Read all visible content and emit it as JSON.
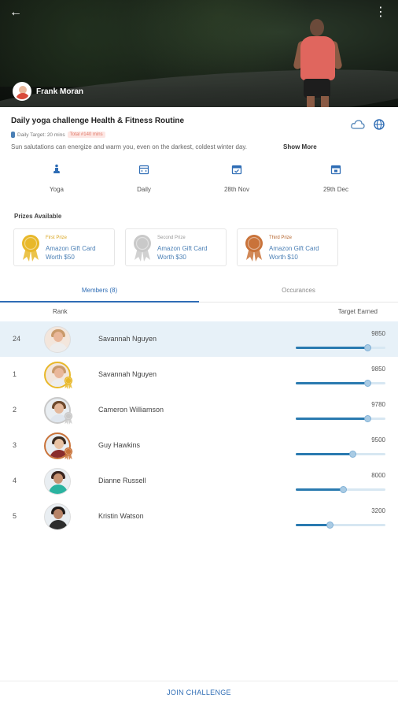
{
  "host": {
    "name": "Frank Moran"
  },
  "challenge": {
    "title": "Daily yoga challenge Health & Fitness  Routine",
    "daily_target": "Daily Target: 20 mins",
    "total_badge": "Total #140 mins",
    "description": "Sun salutations can energize and warm you, even on the darkest, coldest winter day.",
    "show_more": "Show More"
  },
  "info": [
    {
      "icon": "yoga-icon",
      "label": "Yoga"
    },
    {
      "icon": "calendar-icon",
      "label": "Daily"
    },
    {
      "icon": "calendar-check-icon",
      "label": "28th Nov"
    },
    {
      "icon": "calendar-end-icon",
      "label": "29th Dec"
    }
  ],
  "prizes": {
    "label": "Prizes Available",
    "items": [
      {
        "place": "First Prize",
        "line1": "Amazon Gift Card",
        "line2": "Worth $50",
        "place_color": "#d9a520",
        "medal_color": "#e8b82a"
      },
      {
        "place": "Second Prize",
        "line1": "Amazon Gift Card",
        "line2": "Worth $30",
        "place_color": "#999999",
        "medal_color": "#c9c9c9"
      },
      {
        "place": "Third Prize",
        "line1": "Amazon Gift Card",
        "line2": "Worth $10",
        "place_color": "#b5642c",
        "medal_color": "#c9733a"
      }
    ]
  },
  "tabs": {
    "members": "Members (8)",
    "occurances": "Occurances"
  },
  "columns": {
    "rank": "Rank",
    "target": "Target Earned"
  },
  "members": [
    {
      "rank": "24",
      "name": "Savannah Nguyen",
      "score": "9850",
      "progress": 0.8,
      "highlight": true,
      "medal": null,
      "skin": "#e9b79a",
      "hair": "#c99a6b",
      "shirt": "#ededed"
    },
    {
      "rank": "1",
      "name": "Savannah Nguyen",
      "score": "9850",
      "progress": 0.8,
      "highlight": false,
      "medal": "#e8b82a",
      "skin": "#e9b79a",
      "hair": "#c99a6b",
      "shirt": "#ededed"
    },
    {
      "rank": "2",
      "name": "Cameron Williamson",
      "score": "9780",
      "progress": 0.8,
      "highlight": false,
      "medal": "#c9c9c9",
      "skin": "#e3b89b",
      "hair": "#6e4a2e",
      "shirt": "#dfe6ee"
    },
    {
      "rank": "3",
      "name": "Guy Hawkins",
      "score": "9500",
      "progress": 0.64,
      "highlight": false,
      "medal": "#c9733a",
      "skin": "#e8c2a3",
      "hair": "#3b2a1e",
      "shirt": "#8a2c2c"
    },
    {
      "rank": "4",
      "name": "Dianne Russell",
      "score": "8000",
      "progress": 0.53,
      "highlight": false,
      "medal": null,
      "skin": "#c69272",
      "hair": "#3a2620",
      "shirt": "#2bb3a0"
    },
    {
      "rank": "5",
      "name": "Kristin Watson",
      "score": "3200",
      "progress": 0.38,
      "highlight": false,
      "medal": null,
      "skin": "#b78468",
      "hair": "#1f1a18",
      "shirt": "#2d2d2d"
    }
  ],
  "footer": {
    "join": "JOIN CHALLENGE"
  }
}
